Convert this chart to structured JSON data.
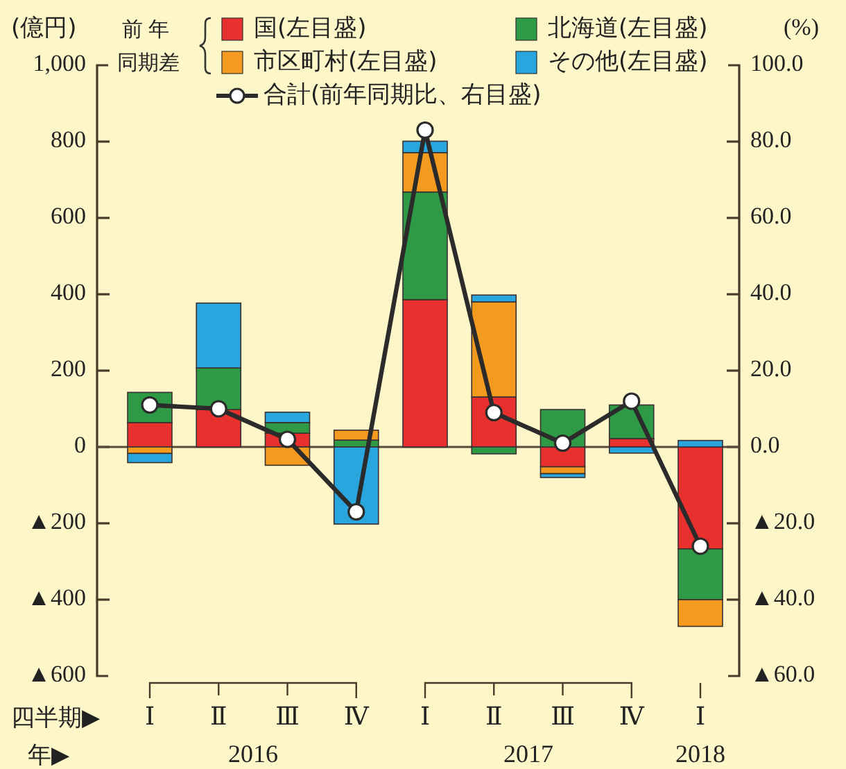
{
  "chart_data": {
    "type": "bar",
    "stacked": true,
    "ylabel": "(億円)",
    "y2label": "(%)",
    "legend_title": "前年同期差",
    "legend": "top",
    "marker": "circle",
    "categories": [
      "Ⅰ",
      "Ⅱ",
      "Ⅲ",
      "Ⅳ",
      "Ⅰ",
      "Ⅱ",
      "Ⅲ",
      "Ⅳ",
      "Ⅰ"
    ],
    "series": [
      {
        "name": "国(左目盛)",
        "color": "#e8312f",
        "values": [
          64,
          98,
          36,
          0,
          386,
          131,
          -52,
          22,
          -267
        ]
      },
      {
        "name": "北海道(左目盛)",
        "color": "#2f9a45",
        "values": [
          79,
          109,
          28,
          18,
          282,
          -18,
          98,
          88,
          -133
        ]
      },
      {
        "name": "市区町村(左目盛)",
        "color": "#f39a1f",
        "values": [
          -17,
          0,
          -48,
          26,
          103,
          249,
          -18,
          0,
          -70
        ]
      },
      {
        "name": "その他(左目盛)",
        "color": "#2aa6df",
        "values": [
          -24,
          170,
          27,
          -202,
          30,
          18,
          -10,
          -16,
          17
        ]
      },
      {
        "name": "合計(前年同期比、右目盛)",
        "type": "line",
        "axis": "y2",
        "color": "#2b2b2b",
        "values": [
          11,
          10,
          2,
          -17,
          83,
          9,
          1,
          12,
          -26
        ]
      }
    ],
    "ylim": [
      -600,
      1000
    ],
    "yticks": [
      {
        "value": -600,
        "label": "▲600"
      },
      {
        "value": -400,
        "label": "▲400"
      },
      {
        "value": -200,
        "label": "▲200"
      },
      0,
      200,
      400,
      600,
      800,
      {
        "value": 1000,
        "label": "1,000"
      }
    ],
    "y2lim": [
      -60,
      100
    ],
    "y2ticks": [
      {
        "value": -60,
        "label": "▲60.0"
      },
      {
        "value": -40,
        "label": "▲40.0"
      },
      {
        "value": -20,
        "label": "▲20.0"
      },
      {
        "value": 0,
        "label": "0.0"
      },
      {
        "value": 20,
        "label": "20.0"
      },
      {
        "value": 40,
        "label": "40.0"
      },
      {
        "value": 60,
        "label": "60.0"
      },
      {
        "value": 80,
        "label": "80.0"
      },
      {
        "value": 100,
        "label": "100.0"
      }
    ],
    "ref_lines": [
      {
        "axis": "y",
        "value": 0,
        "color": "#5a4a3a"
      }
    ],
    "annotations": [
      "四半期▶",
      "年▶",
      "2016",
      "2017",
      "2018"
    ]
  }
}
